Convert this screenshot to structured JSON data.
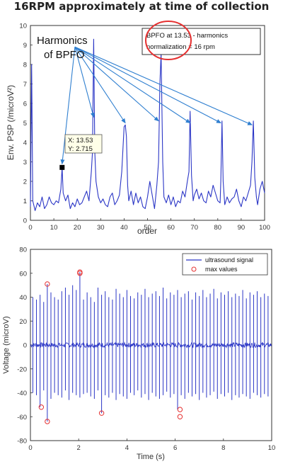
{
  "figure_title": "16RPM approximately at time of collection",
  "colors": {
    "series": "#2b36c6",
    "arrow": "#2f7fd0",
    "circle": "#e53030",
    "axis": "#333333",
    "marker": "#000000"
  },
  "chart_data": [
    {
      "type": "line",
      "xlabel": "order",
      "ylabel": "Env. PSP (/microV²)",
      "xlim": [
        0,
        100
      ],
      "ylim": [
        0,
        10
      ],
      "x_ticks": [
        0,
        10,
        20,
        30,
        40,
        50,
        60,
        70,
        80,
        90,
        100
      ],
      "y_ticks": [
        0,
        1,
        2,
        3,
        4,
        5,
        6,
        7,
        8,
        9,
        10
      ],
      "grid": false,
      "series": [
        {
          "x": [
            0,
            0.5,
            1,
            2,
            3,
            4,
            5,
            6,
            7,
            8,
            9,
            10,
            11,
            12,
            13,
            13.53,
            14,
            15,
            16,
            17,
            18,
            19,
            20,
            21,
            22,
            23,
            24,
            25,
            26,
            26.5,
            27,
            27.5,
            28,
            29,
            30,
            31,
            32,
            33,
            34,
            35,
            36,
            37,
            38,
            39,
            40,
            40.5,
            41,
            41.5,
            42,
            43,
            44,
            45,
            46,
            47,
            48,
            49,
            50,
            51,
            52,
            53,
            54,
            54.7,
            55.3,
            55.8,
            56.5,
            57,
            58,
            59,
            60,
            61,
            62,
            63,
            64,
            65,
            66,
            67,
            67.7,
            68.2,
            68.8,
            69.5,
            70,
            71,
            72,
            73,
            74,
            75,
            76,
            77,
            78,
            79,
            80,
            81,
            81.3,
            81.8,
            82.3,
            83,
            84,
            85,
            86,
            87,
            88,
            89,
            90,
            91,
            92,
            93,
            94,
            94.6,
            95.2,
            95.8,
            96.5,
            97,
            98,
            99,
            100
          ],
          "y": [
            0.7,
            8.0,
            1.0,
            0.5,
            0.9,
            0.7,
            1.2,
            0.6,
            0.8,
            1.2,
            0.9,
            0.8,
            1.0,
            0.9,
            1.6,
            2.715,
            1.4,
            1.0,
            1.3,
            0.6,
            0.9,
            0.7,
            1.1,
            0.8,
            0.9,
            1.2,
            1.5,
            1.0,
            2.5,
            3.5,
            9.3,
            3.5,
            2.0,
            1.2,
            0.9,
            1.1,
            0.8,
            0.7,
            1.2,
            1.4,
            0.8,
            1.0,
            1.3,
            2.5,
            4.8,
            4.9,
            4.3,
            1.8,
            1.0,
            1.5,
            0.8,
            1.4,
            0.9,
            1.2,
            0.7,
            0.6,
            1.2,
            2.0,
            1.3,
            0.6,
            1.8,
            3.0,
            7.0,
            8.6,
            3.0,
            1.2,
            0.9,
            1.3,
            0.8,
            1.2,
            0.7,
            1.0,
            0.9,
            1.5,
            1.2,
            2.0,
            2.5,
            5.6,
            2.3,
            1.0,
            1.3,
            1.6,
            1.1,
            1.4,
            1.0,
            0.9,
            1.5,
            1.2,
            1.8,
            1.4,
            1.0,
            0.9,
            2.0,
            5.1,
            2.0,
            0.8,
            1.2,
            0.9,
            1.1,
            1.2,
            1.6,
            1.0,
            0.7,
            1.2,
            1.0,
            1.4,
            1.8,
            3.0,
            5.1,
            2.2,
            1.2,
            0.8,
            1.6,
            2.0,
            1.4
          ]
        }
      ],
      "marker_point": {
        "x": 13.53,
        "y": 2.715
      },
      "annotations": {
        "harmonics_line1": "Harmonics",
        "harmonics_line2": "of BPFO",
        "harmonic_arrow_targets": [
          {
            "x": 13.53,
            "y": 2.9
          },
          {
            "x": 27,
            "y": 5.3
          },
          {
            "x": 40.5,
            "y": 5.0
          },
          {
            "x": 54.7,
            "y": 5.1
          },
          {
            "x": 68.2,
            "y": 5.0
          },
          {
            "x": 81.3,
            "y": 5.0
          },
          {
            "x": 94.6,
            "y": 4.9
          }
        ],
        "arrow_origin": {
          "x": 19,
          "y": 8.9
        },
        "datatip_x": "X: 13.53",
        "datatip_y": "Y: 2.715",
        "info_line1": "BPFO at 13.53 - harmonics",
        "info_line2": "normalization = 16 rpm"
      }
    },
    {
      "type": "line",
      "xlabel": "Time (s)",
      "ylabel": "Voltage (microV)",
      "xlim": [
        0,
        10
      ],
      "ylim": [
        -80,
        80
      ],
      "x_ticks": [
        0,
        2,
        4,
        6,
        8,
        10
      ],
      "y_ticks": [
        -80,
        -60,
        -40,
        -20,
        0,
        20,
        40,
        60,
        80
      ],
      "grid": false,
      "legend": {
        "placement": "top-right",
        "entries": [
          "ultrasound signal",
          "max values"
        ]
      },
      "series": [
        {
          "name": "ultrasound signal",
          "t": [
            0.1,
            0.25,
            0.4,
            0.55,
            0.7,
            0.85,
            1.0,
            1.15,
            1.3,
            1.45,
            1.6,
            1.75,
            1.9,
            2.05,
            2.2,
            2.35,
            2.5,
            2.65,
            2.8,
            2.95,
            3.1,
            3.25,
            3.4,
            3.55,
            3.7,
            3.85,
            4.0,
            4.15,
            4.3,
            4.45,
            4.6,
            4.75,
            4.9,
            5.05,
            5.2,
            5.35,
            5.5,
            5.65,
            5.8,
            5.95,
            6.1,
            6.25,
            6.4,
            6.55,
            6.7,
            6.85,
            7.0,
            7.15,
            7.3,
            7.45,
            7.6,
            7.75,
            7.9,
            8.05,
            8.2,
            8.35,
            8.5,
            8.65,
            8.8,
            8.95,
            9.1,
            9.25,
            9.4,
            9.55,
            9.7,
            9.85
          ],
          "pos": [
            40,
            38,
            42,
            36,
            51,
            44,
            40,
            38,
            45,
            48,
            42,
            50,
            46,
            61,
            38,
            44,
            40,
            36,
            48,
            42,
            45,
            40,
            38,
            47,
            43,
            40,
            46,
            41,
            39,
            44,
            42,
            47,
            40,
            43,
            45,
            41,
            48,
            39,
            44,
            42,
            46,
            40,
            43,
            45,
            38,
            44,
            41,
            46,
            40,
            43,
            47,
            39,
            44,
            42,
            45,
            40,
            43,
            41,
            46,
            39,
            44,
            42,
            45,
            40,
            43,
            41
          ],
          "neg": [
            -40,
            -42,
            -52,
            -38,
            -64,
            -45,
            -40,
            -42,
            -44,
            -38,
            -46,
            -40,
            -42,
            -44,
            -41,
            -40,
            -43,
            -45,
            -38,
            -57,
            -42,
            -44,
            -40,
            -46,
            -41,
            -43,
            -45,
            -40,
            -42,
            -38,
            -44,
            -41,
            -46,
            -40,
            -43,
            -45,
            -42,
            -39,
            -44,
            -41,
            -54,
            -42,
            -45,
            -40,
            -43,
            -41,
            -46,
            -40,
            -44,
            -42,
            -39,
            -45,
            -41,
            -43,
            -40,
            -46,
            -42,
            -44,
            -41,
            -43,
            -45,
            -40,
            -42,
            -44,
            -41,
            -43
          ]
        },
        {
          "name": "max values",
          "x": [
            0.45,
            0.7,
            0.7,
            2.05,
            2.05,
            2.95,
            6.2,
            6.2
          ],
          "y": [
            -52,
            51,
            -64,
            61,
            60,
            -57,
            -54,
            -60
          ]
        }
      ]
    }
  ]
}
